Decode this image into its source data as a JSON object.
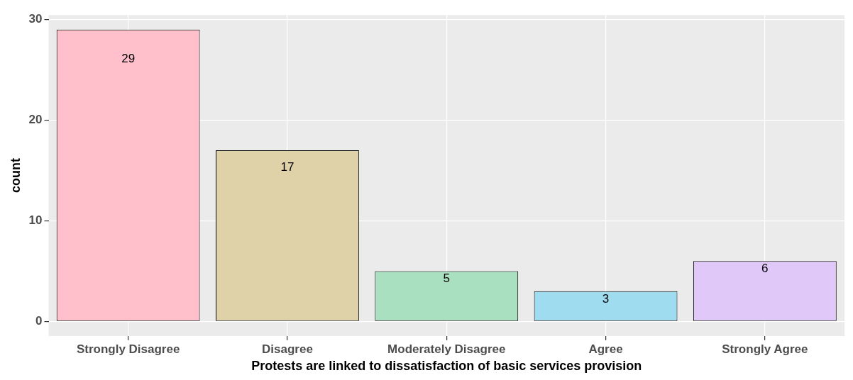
{
  "chart_data": {
    "type": "bar",
    "xlabel": "Protests are linked to dissatisfaction of basic services provision",
    "ylabel": "count",
    "categories": [
      "Strongly Disagree",
      "Disagree",
      "Moderately Disagree",
      "Agree",
      "Strongly Agree"
    ],
    "values": [
      29,
      17,
      5,
      3,
      6
    ],
    "colors": [
      "#ffc0cb",
      "#e0d2a8",
      "#a8e0c0",
      "#a0dcf0",
      "#e0c8f8"
    ],
    "ylim": [
      -1.45,
      30.45
    ],
    "yticks": [
      0,
      10,
      20,
      30
    ],
    "grid": true,
    "data_labels": true,
    "legend": false
  }
}
